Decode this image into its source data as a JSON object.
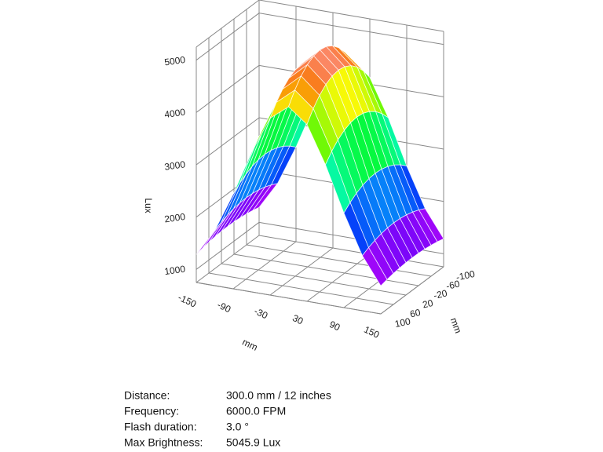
{
  "chart_data": {
    "type": "surface",
    "zlabel": "Lux",
    "xlabel": "mm",
    "ylabel": "mm",
    "x": [
      -150,
      -120,
      -90,
      -60,
      -30,
      0,
      30,
      60,
      90,
      120,
      150
    ],
    "y": [
      -100,
      -80,
      -60,
      -40,
      -20,
      0,
      20,
      40,
      60,
      80,
      100
    ],
    "z": [
      [
        1287,
        1803,
        2558,
        3421,
        4131,
        4409,
        4131,
        3421,
        2558,
        1803,
        1287
      ],
      [
        1318,
        1867,
        2669,
        3587,
        4343,
        4638,
        4343,
        3587,
        2669,
        1867,
        1318
      ],
      [
        1342,
        1916,
        2756,
        3717,
        4507,
        4817,
        4507,
        3717,
        2756,
        1916,
        1342
      ],
      [
        1359,
        1952,
        2818,
        3809,
        4625,
        4944,
        4625,
        3809,
        2818,
        1952,
        1359
      ],
      [
        1370,
        1973,
        2856,
        3864,
        4695,
        5021,
        4695,
        3864,
        2856,
        1973,
        1370
      ],
      [
        1373,
        1980,
        2868,
        3883,
        4719,
        5046,
        4719,
        3883,
        2868,
        1980,
        1373
      ],
      [
        1370,
        1973,
        2856,
        3864,
        4695,
        5021,
        4695,
        3864,
        2856,
        1973,
        1370
      ],
      [
        1359,
        1952,
        2818,
        3809,
        4625,
        4944,
        4625,
        3809,
        2818,
        1952,
        1359
      ],
      [
        1342,
        1916,
        2756,
        3717,
        4507,
        4817,
        4507,
        3717,
        2756,
        1916,
        1342
      ],
      [
        1318,
        1867,
        2669,
        3587,
        4343,
        4638,
        4343,
        3587,
        2669,
        1867,
        1318
      ],
      [
        1287,
        1803,
        2558,
        3421,
        4131,
        4409,
        4131,
        3421,
        2558,
        1803,
        1287
      ]
    ],
    "xlim": [
      -150,
      150
    ],
    "xticks": [
      -150,
      -90,
      -30,
      30,
      90,
      150
    ],
    "ylim": [
      -100,
      100
    ],
    "yticks": [
      -100,
      -60,
      -20,
      20,
      60,
      100
    ],
    "zlim": [
      750,
      5250
    ],
    "zticks": [
      1000,
      2000,
      3000,
      4000,
      5000
    ],
    "grid": true
  },
  "info": [
    {
      "label": "Distance:",
      "value": "300.0 mm / 12 inches"
    },
    {
      "label": "Frequency:",
      "value": "6000.0 FPM"
    },
    {
      "label": "Flash duration:",
      "value": "3.0 °"
    },
    {
      "label": "Max Brightness:",
      "value": "5045.9 Lux"
    }
  ]
}
